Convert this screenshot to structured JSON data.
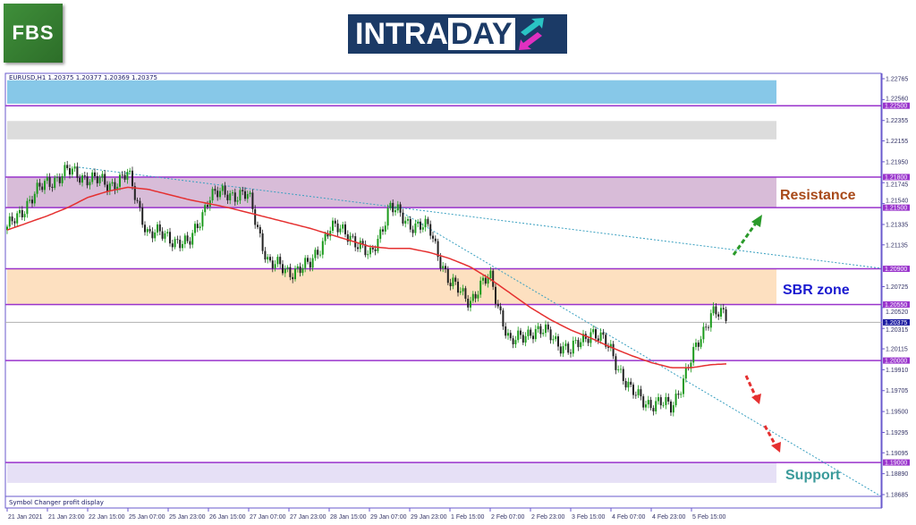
{
  "logos": {
    "left": "FBS",
    "center_a": "INTRA",
    "center_b": "DAY"
  },
  "header": {
    "symbol_line": "EURUSD,H1  1.20375 1.20377 1.20369 1.20375"
  },
  "footer": {
    "status": "Symbol Changer profit display"
  },
  "colors": {
    "bull": "#1a9a1a",
    "bear": "#222222",
    "ma": "#e53030",
    "level": "#9933cc",
    "current": "#1a1aa0",
    "trend": "#3aa0c0",
    "resistance": "#a84a1a",
    "sbr": "#1a1ad0",
    "support": "#3a9a9a"
  },
  "zones": {
    "resistance": "Resistance",
    "sbr": "SBR zone",
    "support": "Support"
  },
  "chart_data": {
    "type": "candlestick",
    "symbol": "EURUSD",
    "timeframe": "H1",
    "ylim": [
      1.186,
      1.228
    ],
    "y_ticks": [
      "1.22765",
      "1.22560",
      "1.22355",
      "1.22155",
      "1.21950",
      "1.21745",
      "1.21540",
      "1.21335",
      "1.21135",
      "1.20725",
      "1.20520",
      "1.20315",
      "1.20115",
      "1.19910",
      "1.19705",
      "1.19500",
      "1.19295",
      "1.19095",
      "1.18890",
      "1.18685"
    ],
    "levels": [
      "1.22500",
      "1.21800",
      "1.21500",
      "1.20900",
      "1.20550",
      "1.20000",
      "1.19000"
    ],
    "current_price": "1.20375",
    "x_ticks": [
      "21 Jan 2021",
      "21 Jan 23:00",
      "22 Jan 15:00",
      "25 Jan 07:00",
      "25 Jan 23:00",
      "26 Jan 15:00",
      "27 Jan 07:00",
      "27 Jan 23:00",
      "28 Jan 15:00",
      "29 Jan 07:00",
      "29 Jan 23:00",
      "1 Feb 15:00",
      "2 Feb 07:00",
      "2 Feb 23:00",
      "3 Feb 15:00",
      "4 Feb 07:00",
      "4 Feb 23:00",
      "5 Feb 15:00"
    ],
    "close_path_8h": [
      1.2128,
      1.2155,
      1.2175,
      1.2185,
      1.218,
      1.2172,
      1.2182,
      1.2125,
      1.2122,
      1.2112,
      1.216,
      1.2165,
      1.216,
      1.2095,
      1.2088,
      1.2092,
      1.213,
      1.2125,
      1.21,
      1.215,
      1.2135,
      1.2128,
      1.2075,
      1.206,
      1.2082,
      1.2015,
      1.203,
      1.2025,
      1.2008,
      1.203,
      1.201,
      1.1968,
      1.1958,
      1.1955,
      1.2,
      1.205,
      1.2037
    ],
    "ma_path_8h": [
      1.2128,
      1.2135,
      1.2142,
      1.215,
      1.216,
      1.2166,
      1.217,
      1.2168,
      1.2163,
      1.2158,
      1.2154,
      1.215,
      1.2145,
      1.214,
      1.2135,
      1.213,
      1.2124,
      1.2118,
      1.2112,
      1.211,
      1.211,
      1.2106,
      1.21,
      1.2092,
      1.208,
      1.2066,
      1.2052,
      1.204,
      1.203,
      1.2022,
      1.2013,
      1.2005,
      1.1998,
      1.1993,
      1.1993,
      1.1996,
      1.1997
    ],
    "zones": [
      {
        "from": 1.2252,
        "to": 1.2275,
        "color": "#87c8e8"
      },
      {
        "from": 1.2217,
        "to": 1.2235,
        "color": "#dcdcdc"
      },
      {
        "from": 1.215,
        "to": 1.218,
        "color": "#d8bcd8"
      },
      {
        "from": 1.2055,
        "to": 1.209,
        "color": "#fde0c0"
      },
      {
        "from": 1.188,
        "to": 1.19,
        "color": "#e6e0f6"
      }
    ]
  }
}
